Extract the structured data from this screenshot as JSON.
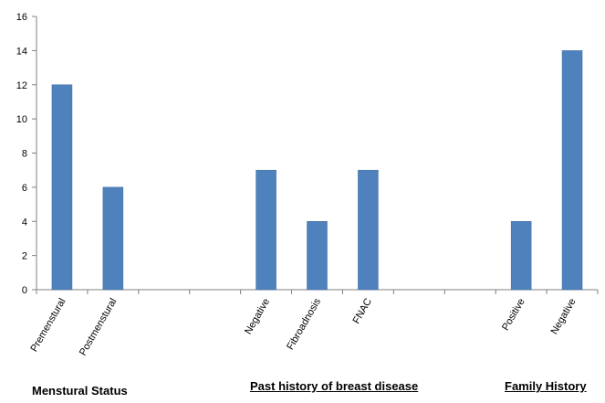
{
  "colors": {
    "bar": "#4F81BD",
    "bar_stroke": "#3C6A9F",
    "axis": "#808080",
    "tick_text": "#000000"
  },
  "chart_data": {
    "type": "bar",
    "categories": [
      "Premenstural",
      "Postmenstural",
      "",
      "",
      "Negative",
      "Fibroadnosis",
      "FNAC",
      "",
      "",
      "Positive",
      "Negative"
    ],
    "values": [
      12,
      6,
      null,
      null,
      7,
      4,
      7,
      null,
      null,
      4,
      14
    ],
    "title": "",
    "xlabel": "",
    "ylabel": "",
    "ylim": [
      0,
      16
    ],
    "yticks": [
      0,
      2,
      4,
      6,
      8,
      10,
      12,
      14,
      16
    ],
    "grid": false,
    "legend": "none",
    "groups": [
      {
        "label": "Menstural Status",
        "underlined": false,
        "category_indices": [
          0,
          1
        ]
      },
      {
        "label": "Past history of breast disease",
        "underlined": true,
        "category_indices": [
          4,
          5,
          6
        ]
      },
      {
        "label": "Family History",
        "underlined": true,
        "category_indices": [
          9,
          10
        ]
      }
    ]
  }
}
